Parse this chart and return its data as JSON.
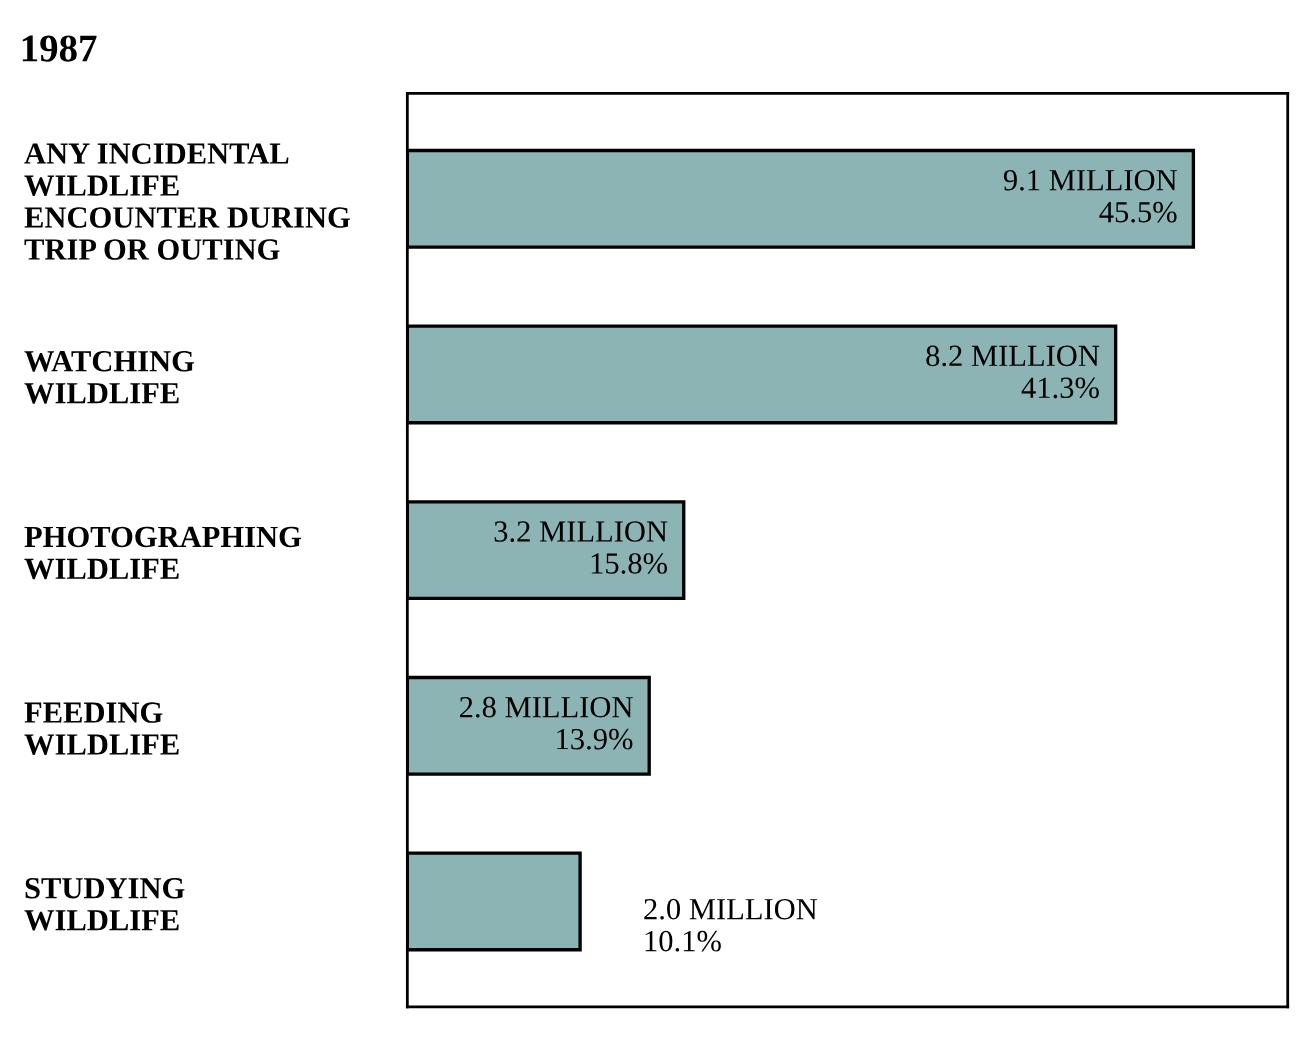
{
  "chart_data": {
    "type": "bar",
    "orientation": "horizontal",
    "title": "1987",
    "categories": [
      "ANY INCIDENTAL\nWILDLIFE\nENCOUNTER DURING\nTRIP OR OUTING",
      "WATCHING\nWILDLIFE",
      "PHOTOGRAPHING\nWILDLIFE",
      "FEEDING\nWILDLIFE",
      "STUDYING\nWILDLIFE"
    ],
    "values": [
      9.1,
      8.2,
      3.2,
      2.8,
      2.0
    ],
    "value_labels": [
      "9.1 MILLION\n45.5%",
      "8.2 MILLION\n41.3%",
      "3.2 MILLION\n15.8%",
      "2.8 MILLION\n13.9%",
      "2.0 MILLION\n10.1%"
    ],
    "color": "#8cb4b4",
    "grid": false,
    "legend": false
  }
}
